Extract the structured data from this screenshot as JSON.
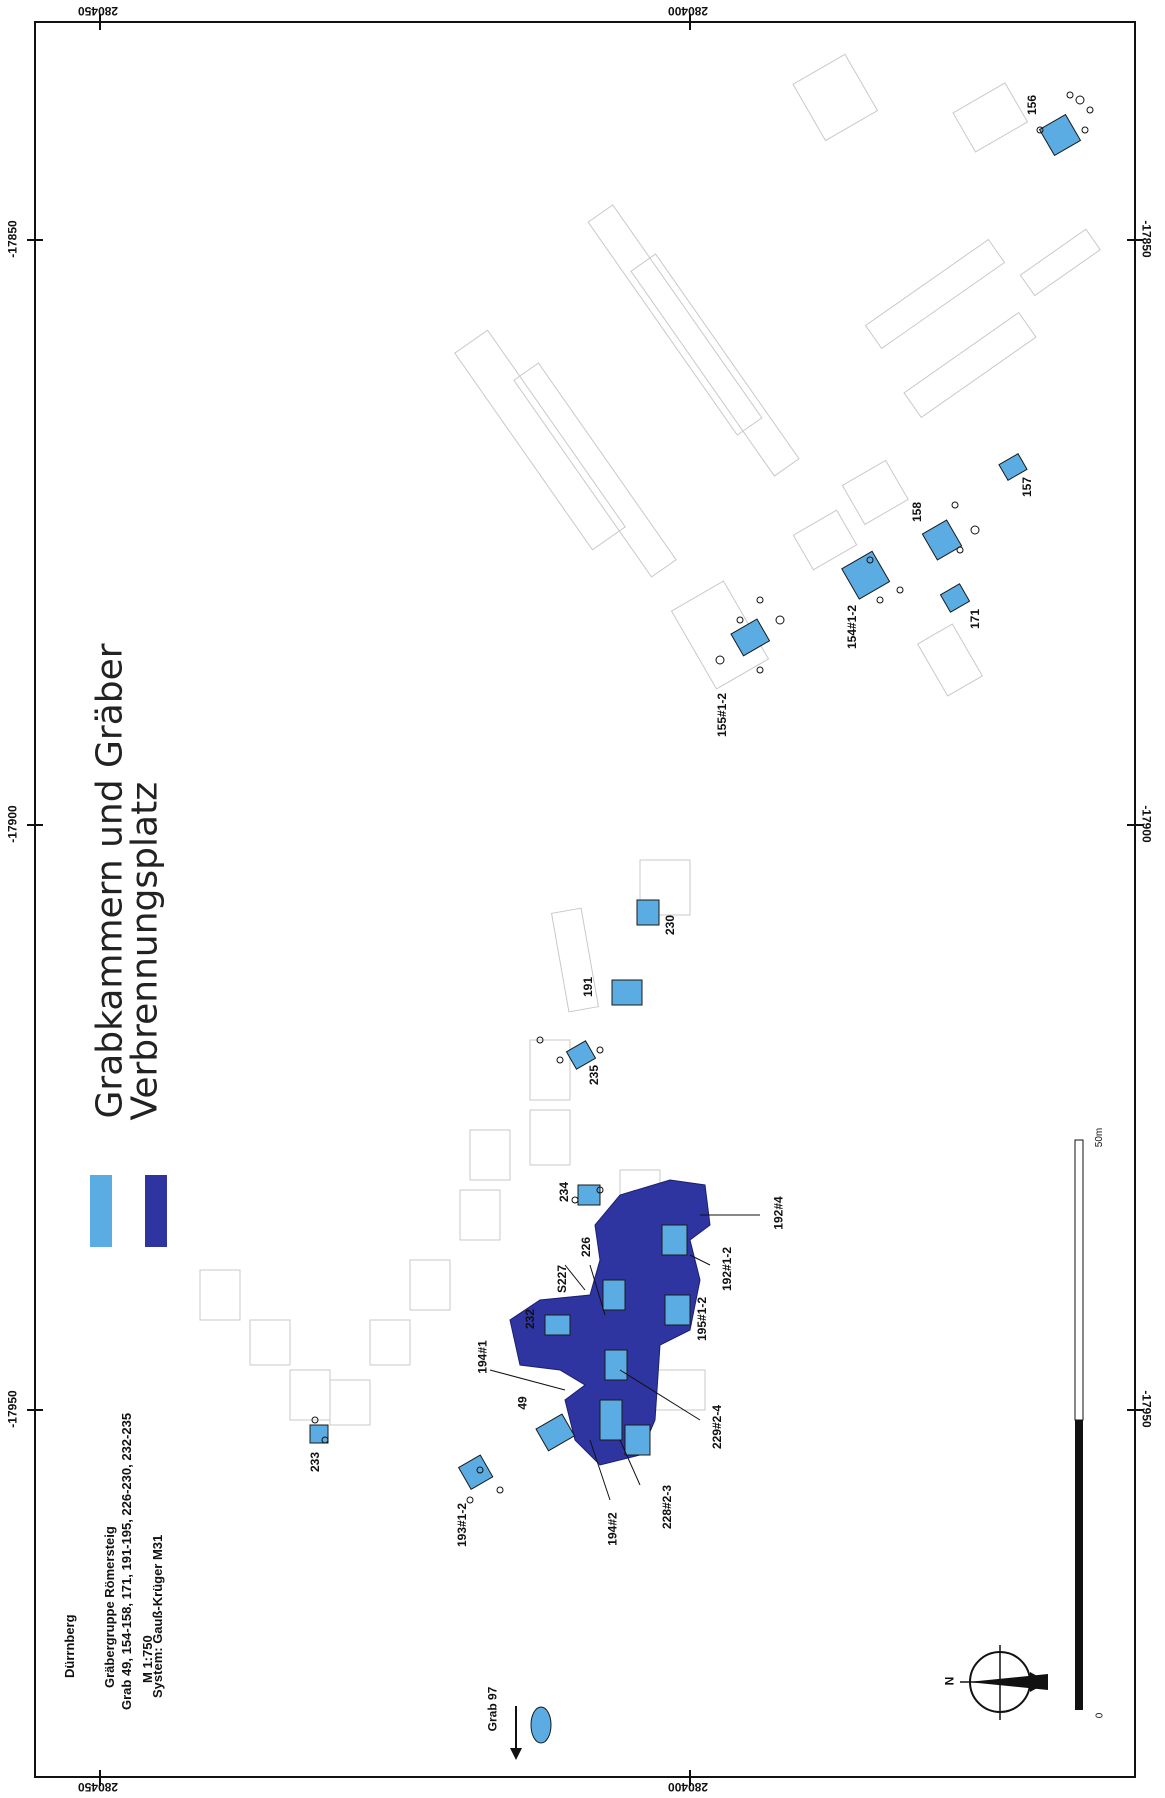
{
  "map": {
    "place": "Dürrnberg",
    "group": "Gräbergruppe Römersteig",
    "graves": "Grab 49, 154-158, 171, 191-195, 226-230, 232-235",
    "scale": "M 1:750",
    "system": "System: Gauß-Krüger M31",
    "grid_top_left": "280450",
    "grid_top_mid": "280400",
    "grid_bottom_left": "280450",
    "grid_bottom_mid": "280400",
    "grid_y1": "-17850",
    "grid_y2": "-17900",
    "grid_y3": "-17950",
    "grab97": "Grab 97",
    "north": "N",
    "scalebar_start": "0",
    "scalebar_end": "50m"
  },
  "legend": {
    "item1": "Grabkammern und Gräber",
    "item2": "Verbrennungsplatz",
    "color1": "#5aace3",
    "color2": "#2e35a0"
  },
  "graves": {
    "g156": "156",
    "g157": "157",
    "g158": "158",
    "g171": "171",
    "g154": "154#1-2",
    "g155": "155#1-2",
    "g230": "230",
    "g191": "191",
    "g235": "235",
    "g234": "234",
    "g226": "226",
    "gS227": "S227",
    "g232": "232",
    "g192_4": "192#4",
    "g192_12": "192#1-2",
    "g195": "195#1-2",
    "g194_1": "194#1",
    "g49": "49",
    "g229": "229#2-4",
    "g228": "228#2-3",
    "g194_2": "194#2",
    "g233": "233",
    "g193": "193#1-2"
  }
}
